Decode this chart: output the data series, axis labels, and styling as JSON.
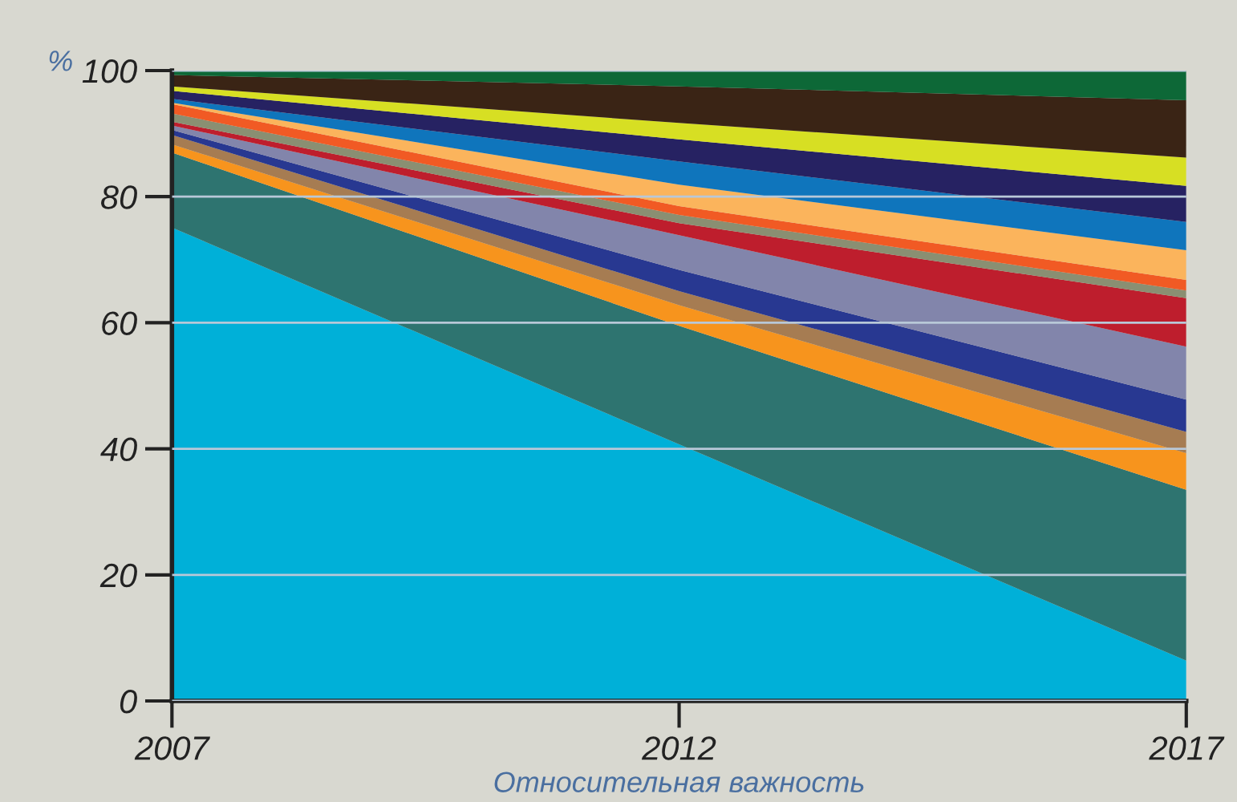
{
  "chart_data": {
    "type": "area",
    "stacked": true,
    "xlabel": "Относительная важность",
    "ylabel": "%",
    "x": [
      2007,
      2012,
      2017
    ],
    "xlim": [
      2007,
      2017
    ],
    "xticks": [
      2007,
      2012,
      2017
    ],
    "ylim": [
      0,
      100
    ],
    "yticks": [
      0,
      20,
      40,
      60,
      80,
      100
    ],
    "grid": "y",
    "legend": false,
    "series": [
      {
        "color": "#00b0d8",
        "values": [
          75.1,
          40.7,
          6.4
        ]
      },
      {
        "color": "#2e7470",
        "values": [
          11.9,
          18.8,
          27.1
        ]
      },
      {
        "color": "#f7941d",
        "values": [
          1.3,
          3.3,
          5.8
        ]
      },
      {
        "color": "#a67c52",
        "values": [
          1.5,
          2.2,
          3.4
        ]
      },
      {
        "color": "#283891",
        "values": [
          0.8,
          3.4,
          5.1
        ]
      },
      {
        "color": "#8285ab",
        "values": [
          0.7,
          5.5,
          8.4
        ]
      },
      {
        "color": "#be1e2d",
        "values": [
          0.6,
          1.9,
          7.7
        ]
      },
      {
        "color": "#8a8f72",
        "values": [
          1.3,
          1.3,
          1.2
        ]
      },
      {
        "color": "#f15a24",
        "values": [
          1.5,
          1.4,
          1.7
        ]
      },
      {
        "color": "#fbb45c",
        "values": [
          0.2,
          3.4,
          4.7
        ]
      },
      {
        "color": "#0f75bc",
        "values": [
          0.6,
          3.7,
          4.5
        ]
      },
      {
        "color": "#262262",
        "values": [
          1.3,
          3.5,
          5.7
        ]
      },
      {
        "color": "#d7df23",
        "values": [
          0.7,
          2.6,
          4.5
        ]
      },
      {
        "color": "#3a2415",
        "values": [
          1.8,
          5.8,
          9.1
        ]
      },
      {
        "color": "#0d6837",
        "values": [
          0.7,
          2.5,
          4.7
        ]
      }
    ]
  }
}
